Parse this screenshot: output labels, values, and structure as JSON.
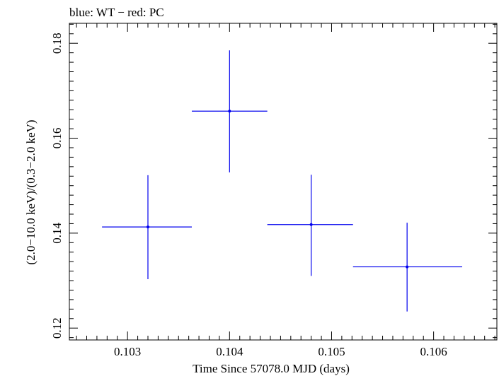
{
  "chart_data": {
    "type": "scatter",
    "title": "blue: WT − red: PC",
    "xlabel": "Time Since 57078.0 MJD (days)",
    "ylabel": "(2.0−10.0 keV)/(0.3−2.0 keV)",
    "xlim": [
      0.10243,
      0.10662
    ],
    "ylim": [
      0.1175,
      0.1842
    ],
    "xticks": [
      0.103,
      0.104,
      0.105,
      0.106
    ],
    "xtick_labels": [
      "0.103",
      "0.104",
      "0.105",
      "0.106"
    ],
    "yticks": [
      0.12,
      0.14,
      0.16,
      0.18
    ],
    "ytick_labels": [
      "0.12",
      "0.14",
      "0.16",
      "0.18"
    ],
    "grid": false,
    "series": [
      {
        "color": "#0000ee",
        "points": [
          {
            "x": 0.1032,
            "y": 0.1413,
            "xerr": [
              0.10275,
              0.10363
            ],
            "yerr": [
              0.1303,
              0.1522
            ]
          },
          {
            "x": 0.104,
            "y": 0.1657,
            "xerr": [
              0.10363,
              0.10437
            ],
            "yerr": [
              0.1528,
              0.1785
            ]
          },
          {
            "x": 0.1048,
            "y": 0.1418,
            "xerr": [
              0.10437,
              0.10521
            ],
            "yerr": [
              0.131,
              0.1523
            ]
          },
          {
            "x": 0.10574,
            "y": 0.1329,
            "xerr": [
              0.10521,
              0.10628
            ],
            "yerr": [
              0.1235,
              0.1422
            ]
          }
        ]
      }
    ]
  }
}
